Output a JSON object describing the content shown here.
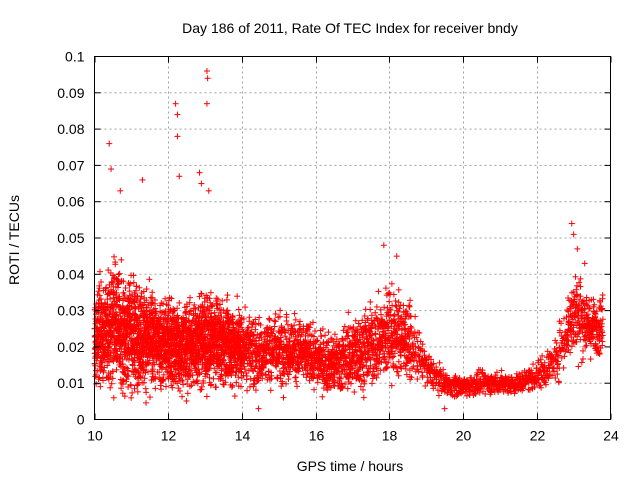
{
  "chart_data": {
    "type": "scatter",
    "title": "Day 186 of 2011, Rate Of TEC Index for receiver bndy",
    "xlabel": "GPS time / hours",
    "ylabel": "ROTI / TECUs",
    "xlim": [
      10,
      24
    ],
    "ylim": [
      0,
      0.1
    ],
    "xticks": [
      10,
      12,
      14,
      16,
      18,
      20,
      22,
      24
    ],
    "xtick_labels": [
      "10",
      "12",
      "14",
      "16",
      "18",
      "20",
      "22",
      "24"
    ],
    "yticks": [
      0,
      0.01,
      0.02,
      0.03,
      0.04,
      0.05,
      0.06,
      0.07,
      0.08,
      0.09,
      0.1
    ],
    "ytick_labels": [
      "0",
      "0.01",
      "0.02",
      "0.03",
      "0.04",
      "0.05",
      "0.06",
      "0.07",
      "0.08",
      "0.09",
      "0.1"
    ],
    "grid": true,
    "marker": "plus",
    "color": "#ff0000",
    "series_envelope": {
      "description_x": [
        10.0,
        10.5,
        11.0,
        11.5,
        12.0,
        12.5,
        13.0,
        13.5,
        14.0,
        14.5,
        15.0,
        15.5,
        16.0,
        16.5,
        17.0,
        17.5,
        18.0,
        18.5,
        19.0,
        19.5,
        20.0,
        20.5,
        21.0,
        21.5,
        22.0,
        22.5,
        23.0,
        23.5,
        23.8
      ],
      "center": [
        0.022,
        0.026,
        0.024,
        0.022,
        0.021,
        0.02,
        0.022,
        0.021,
        0.02,
        0.018,
        0.02,
        0.019,
        0.017,
        0.015,
        0.018,
        0.02,
        0.024,
        0.022,
        0.014,
        0.01,
        0.009,
        0.01,
        0.01,
        0.01,
        0.012,
        0.016,
        0.03,
        0.025,
        0.027
      ],
      "spread": [
        0.014,
        0.016,
        0.015,
        0.013,
        0.013,
        0.012,
        0.013,
        0.011,
        0.011,
        0.01,
        0.01,
        0.009,
        0.008,
        0.008,
        0.01,
        0.011,
        0.013,
        0.01,
        0.005,
        0.003,
        0.003,
        0.003,
        0.003,
        0.003,
        0.004,
        0.006,
        0.012,
        0.008,
        0.008
      ]
    },
    "notable_points": [
      {
        "x": 10.4,
        "y": 0.076
      },
      {
        "x": 10.45,
        "y": 0.069
      },
      {
        "x": 10.7,
        "y": 0.063
      },
      {
        "x": 11.3,
        "y": 0.066
      },
      {
        "x": 12.2,
        "y": 0.087
      },
      {
        "x": 12.25,
        "y": 0.084
      },
      {
        "x": 12.25,
        "y": 0.078
      },
      {
        "x": 12.3,
        "y": 0.067
      },
      {
        "x": 12.85,
        "y": 0.068
      },
      {
        "x": 12.9,
        "y": 0.065
      },
      {
        "x": 13.05,
        "y": 0.096
      },
      {
        "x": 13.07,
        "y": 0.094
      },
      {
        "x": 13.05,
        "y": 0.087
      },
      {
        "x": 13.1,
        "y": 0.063
      },
      {
        "x": 17.85,
        "y": 0.048
      },
      {
        "x": 18.2,
        "y": 0.045
      },
      {
        "x": 22.95,
        "y": 0.054
      },
      {
        "x": 23.0,
        "y": 0.051
      },
      {
        "x": 23.1,
        "y": 0.047
      },
      {
        "x": 23.3,
        "y": 0.043
      },
      {
        "x": 14.45,
        "y": 0.003
      },
      {
        "x": 19.5,
        "y": 0.003
      }
    ]
  }
}
